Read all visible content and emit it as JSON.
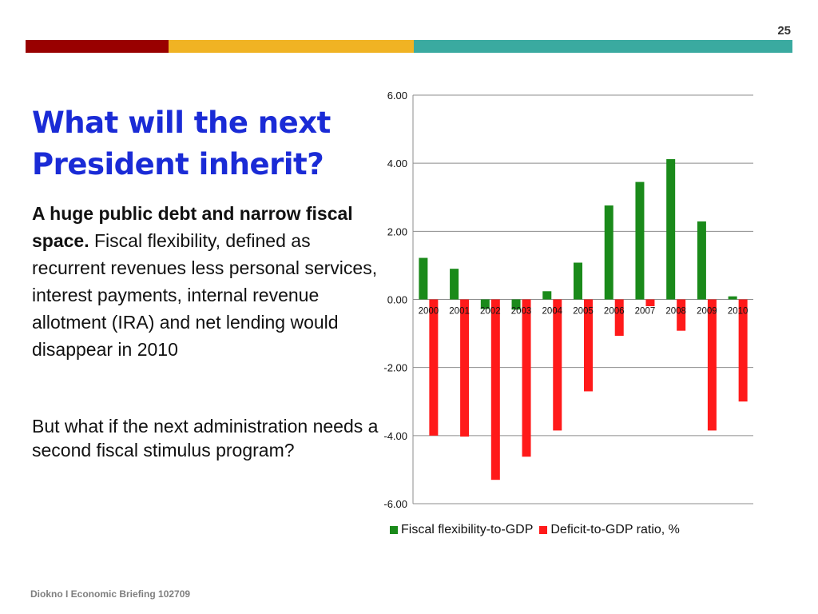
{
  "page_number": "25",
  "strip_colors": [
    "#990000",
    "#f0b323",
    "#3aaaa0"
  ],
  "title": "What will the next President inherit?",
  "body": {
    "bold_lead": "A huge public debt and narrow fiscal space.",
    "rest": " Fiscal flexibility, defined as recurrent revenues less personal services, interest payments, internal revenue allotment (IRA)  and net lending would  disappear in 2010",
    "para2": "But what if the next administration needs a second fiscal stimulus program?"
  },
  "footer": "Diokno I Economic Briefing 102709",
  "chart_data": {
    "type": "bar",
    "categories": [
      "2000",
      "2001",
      "2002",
      "2003",
      "2004",
      "2005",
      "2006",
      "2007",
      "2008",
      "2009",
      "2010"
    ],
    "series": [
      {
        "name": "Fiscal flexibility-to-GDP",
        "color": "#1a8a1a",
        "values": [
          1.22,
          0.9,
          -0.28,
          -0.3,
          0.24,
          1.08,
          2.76,
          3.45,
          4.12,
          2.29,
          0.09
        ]
      },
      {
        "name": "Deficit-to-GDP ratio, %",
        "color": "#ff1a1a",
        "values": [
          -4.0,
          -4.03,
          -5.3,
          -4.62,
          -3.85,
          -2.7,
          -1.07,
          -0.2,
          -0.92,
          -3.85,
          -3.0
        ]
      }
    ],
    "ylim": [
      -6,
      6
    ],
    "yticks": [
      "6.00",
      "4.00",
      "2.00",
      "0.00",
      "-2.00",
      "-4.00",
      "-6.00"
    ],
    "grid": true,
    "legend_position": "bottom"
  }
}
